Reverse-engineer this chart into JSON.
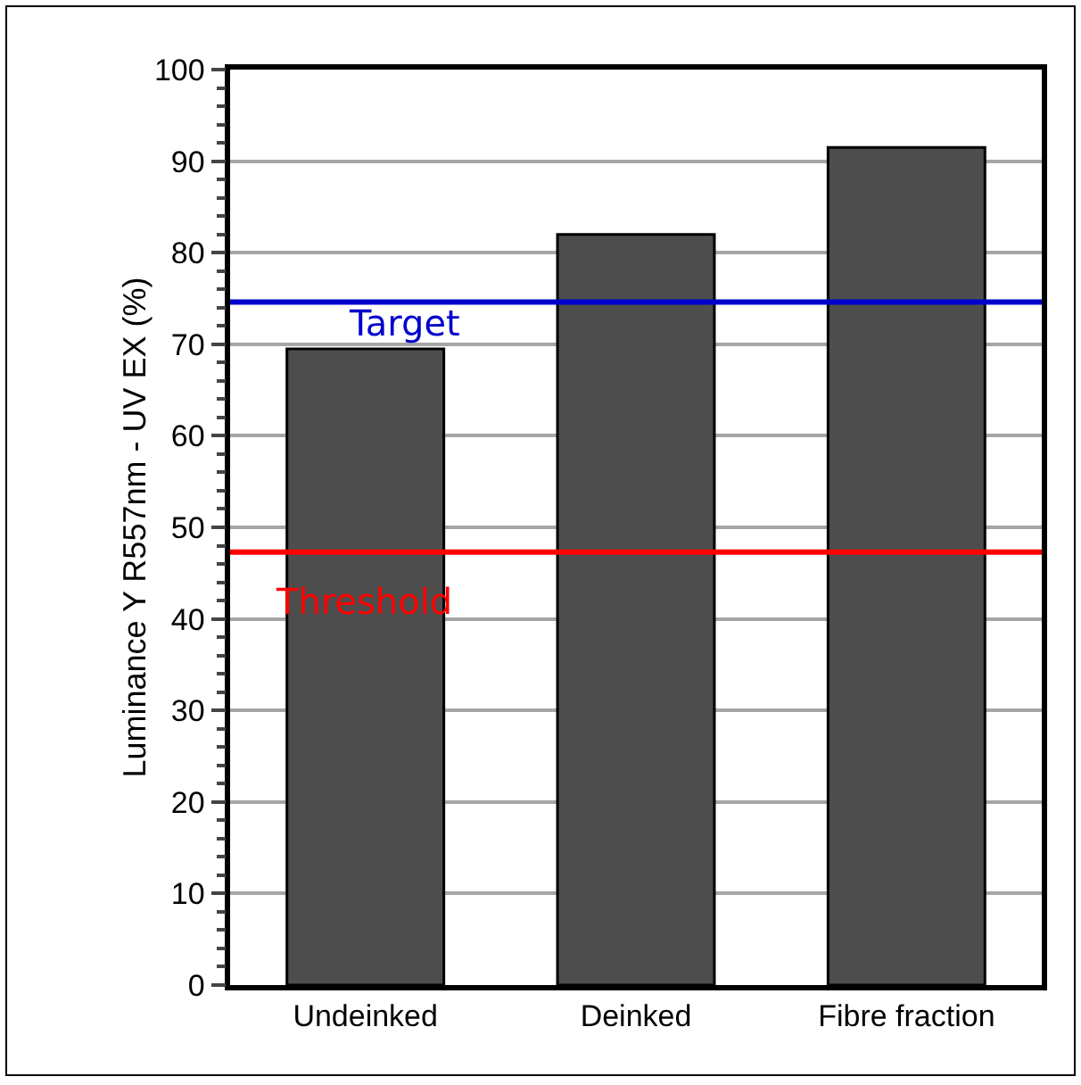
{
  "chart_data": {
    "type": "bar",
    "ylabel": "Luminance Y R557nm - UV EX (%)",
    "categories": [
      "Undeinked",
      "Deinked",
      "Fibre fraction"
    ],
    "values": [
      69.5,
      82.0,
      91.5
    ],
    "color": "#4d4d4d",
    "ylim": [
      0,
      100
    ],
    "yticks": [
      0,
      10,
      20,
      30,
      40,
      50,
      60,
      70,
      80,
      90,
      100
    ],
    "grid": "y",
    "ref_lines": [
      {
        "axis": "y",
        "value": 74.6,
        "label": "Target",
        "color": "#0000cc"
      },
      {
        "axis": "y",
        "value": 47.3,
        "label": "Threshold",
        "color": "#ff0000"
      }
    ]
  }
}
